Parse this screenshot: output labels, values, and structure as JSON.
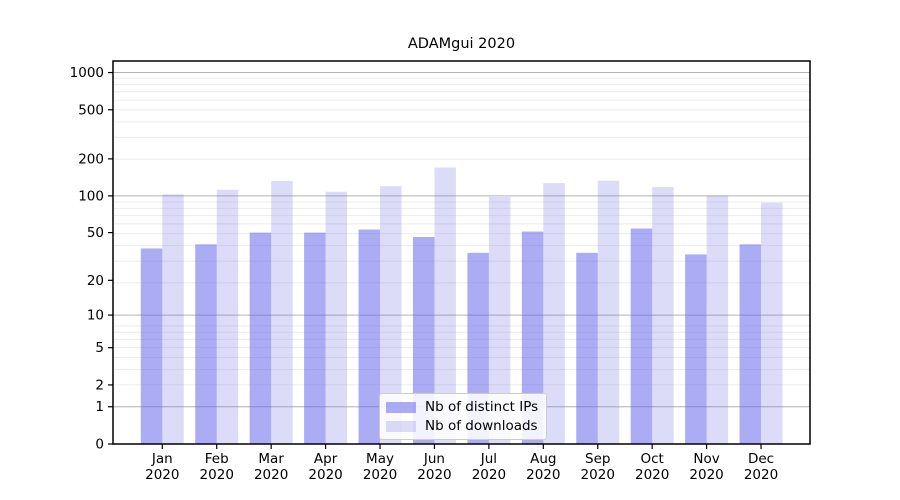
{
  "chart_data": {
    "type": "bar",
    "title": "ADAMgui 2020",
    "categories": [
      "Jan",
      "Feb",
      "Mar",
      "Apr",
      "May",
      "Jun",
      "Jul",
      "Aug",
      "Sep",
      "Oct",
      "Nov",
      "Dec"
    ],
    "x_tick_second_line": "2020",
    "series": [
      {
        "name": "Nb of distinct IPs",
        "color": "rgba(104,104,237,0.55)",
        "color_hex_on_white": "#acacf5",
        "values": [
          37,
          40,
          50,
          50,
          53,
          46,
          34,
          51,
          34,
          54,
          33,
          40
        ]
      },
      {
        "name": "Nb of downloads",
        "color": "rgba(115,115,227,0.25)",
        "color_hex_on_white": "#dcdcf8",
        "values": [
          103,
          112,
          132,
          108,
          120,
          170,
          98,
          127,
          133,
          118,
          100,
          88
        ]
      }
    ],
    "y_ticks": [
      0,
      1,
      2,
      5,
      10,
      20,
      50,
      100,
      200,
      500,
      1000
    ],
    "y_scale": "log10(v+1)",
    "ylim": [
      0,
      1241
    ],
    "xlabel": "",
    "ylabel": "",
    "grid": "on",
    "major_grid_values": [
      1,
      10,
      100,
      1000
    ],
    "major_grid_color": "#b3b3b3",
    "minor_grid_color": "#ececec",
    "legend_position": "lower center",
    "axis_color": "#000000",
    "background_color": "#ffffff"
  }
}
